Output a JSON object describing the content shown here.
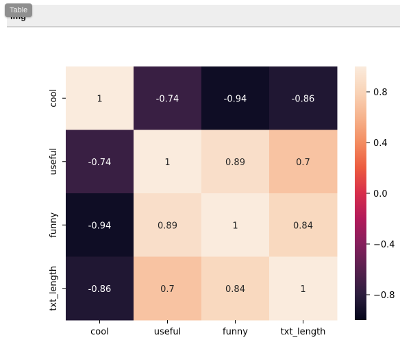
{
  "header": {
    "label": "img",
    "tooltip": "Table"
  },
  "chart_data": {
    "type": "heatmap",
    "x_labels": [
      "cool",
      "useful",
      "funny",
      "txt_length"
    ],
    "y_labels": [
      "cool",
      "useful",
      "funny",
      "txt_length"
    ],
    "values": [
      [
        1,
        -0.74,
        -0.94,
        -0.86
      ],
      [
        -0.74,
        1,
        0.89,
        0.7
      ],
      [
        -0.94,
        0.89,
        1,
        0.84
      ],
      [
        -0.86,
        0.7,
        0.84,
        1
      ]
    ],
    "colormap": "rocket",
    "vmin": -1,
    "vmax": 1,
    "colorbar_ticks": [
      0.8,
      0.4,
      0.0,
      -0.4,
      -0.8
    ],
    "colorbar_tick_labels": [
      "0.8",
      "0.4",
      "0.0",
      "−0.4",
      "−0.8"
    ],
    "annotations": true,
    "grid": false
  }
}
